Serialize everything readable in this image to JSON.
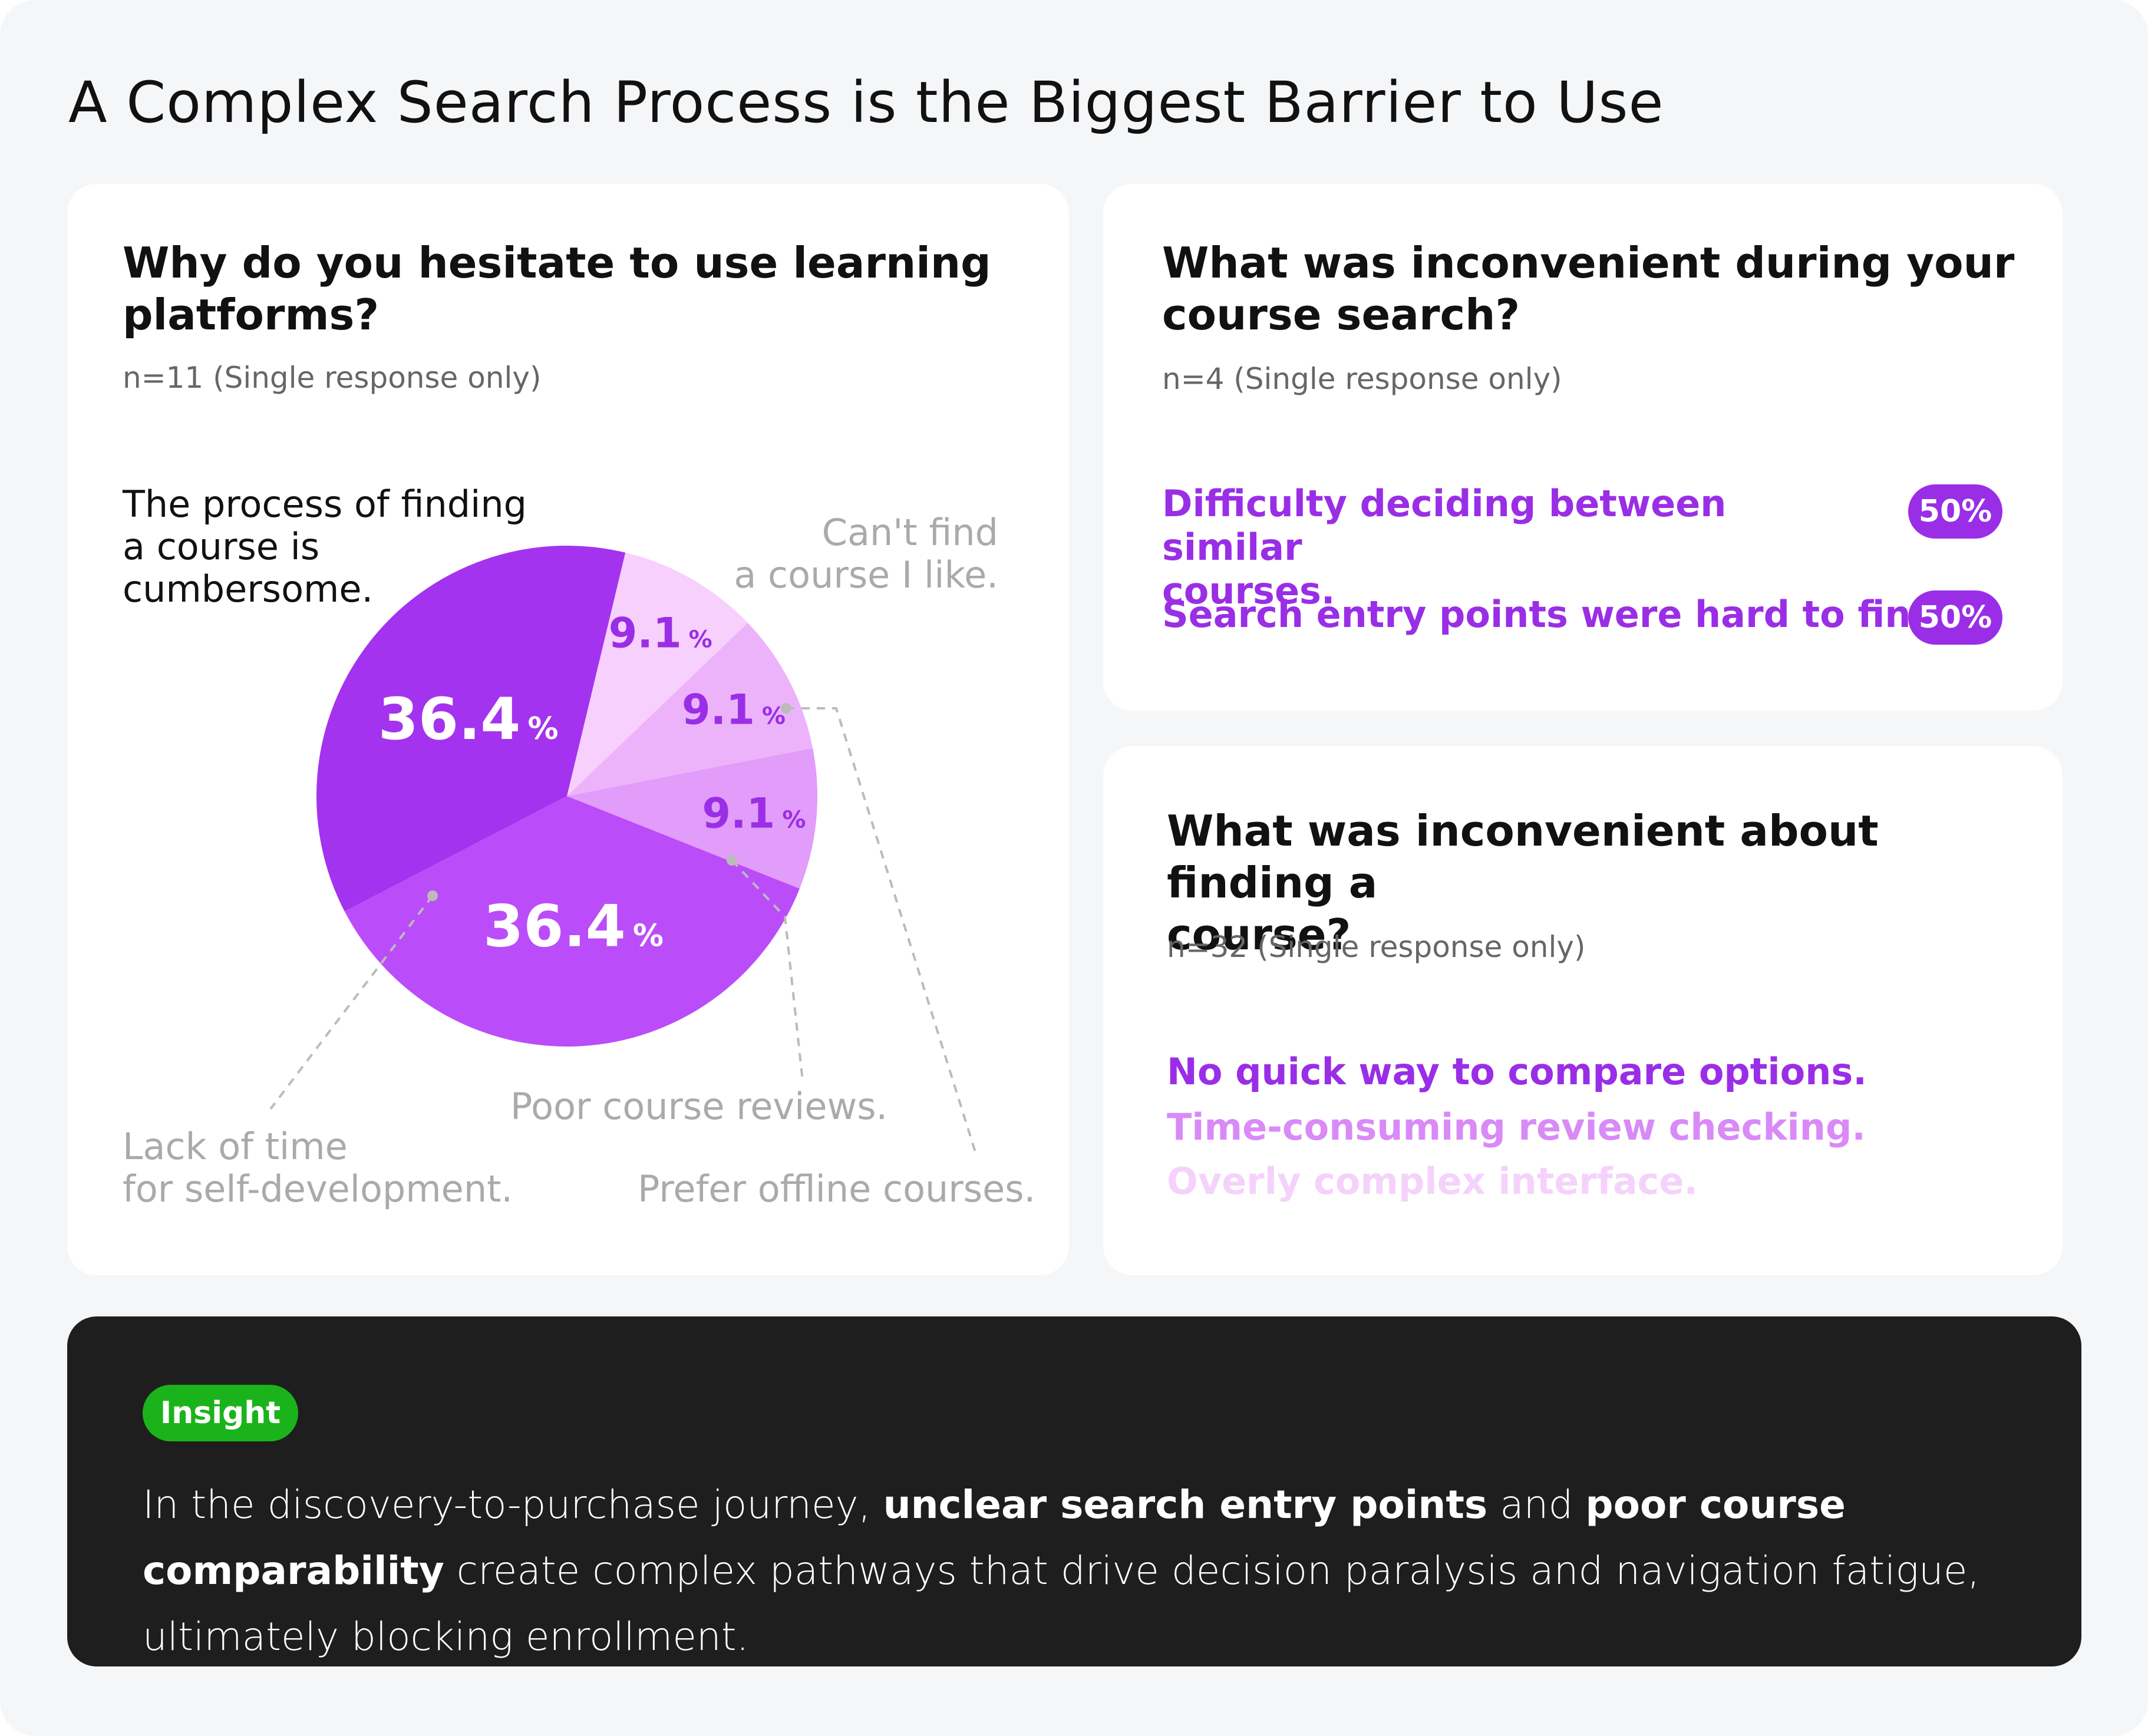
{
  "page": {
    "title": "A Complex Search Process is the Biggest Barrier to Use"
  },
  "cards": {
    "pie": {
      "question": "Why do you hesitate to use learning platforms?",
      "question_lines": [
        "Why do you hesitate to use learning",
        "platforms?"
      ],
      "sample": "n=11 (Single response only)"
    },
    "search": {
      "question_lines": [
        "What was inconvenient during your",
        "course search?"
      ],
      "sample": "n=4 (Single response only)",
      "options": [
        {
          "label_lines": [
            "Difficulty deciding between similar",
            "courses."
          ],
          "percent": "50%"
        },
        {
          "label_lines": [
            "Search entry points were hard to find."
          ],
          "percent": "50%"
        }
      ],
      "accent": "#9a2ee6"
    },
    "finding": {
      "question_lines": [
        "What was inconvenient about finding a",
        "course?"
      ],
      "sample": "n=32 (Single response only)",
      "items": [
        {
          "label": "No quick way to compare options.",
          "color": "#9a2ee6"
        },
        {
          "label": "Time-consuming review checking.",
          "color": "#d98af7"
        },
        {
          "label": "Overly complex interface.",
          "color": "#f5d2fb"
        }
      ]
    }
  },
  "chart_data": {
    "type": "pie",
    "title": "Why do you hesitate to use learning platforms?",
    "slices": [
      {
        "label": "Can't find a course I like.",
        "value": 9.1,
        "display": "9.1",
        "unit": "%",
        "color": "#f7d0fd"
      },
      {
        "label": "Prefer offline courses.",
        "value": 9.1,
        "display": "9.1",
        "unit": "%",
        "color": "#ecb3fb"
      },
      {
        "label": "Poor course reviews.",
        "value": 9.1,
        "display": "9.1",
        "unit": "%",
        "color": "#e29cf9"
      },
      {
        "label": "Lack of time for self-development.",
        "value": 36.4,
        "display": "36.4",
        "unit": "%",
        "color": "#bb4cf9"
      },
      {
        "label": "The process of finding a course is cumbersome.",
        "value": 36.4,
        "display": "36.4",
        "unit": "%",
        "color": "#a333ee"
      }
    ],
    "label_lines": {
      "cumbersome": [
        "The process of finding",
        "a course is",
        "cumbersome."
      ],
      "cant_find": [
        "Can't find",
        "a course I like."
      ],
      "poor_reviews": [
        "Poor course reviews."
      ],
      "lack_time": [
        "Lack of time",
        "for self-development."
      ],
      "offline": [
        "Prefer offline courses."
      ]
    }
  },
  "insight": {
    "badge": "Insight",
    "parts": [
      {
        "text": "In the discovery-to-purchase journey, ",
        "bold": false
      },
      {
        "text": "unclear search entry points",
        "bold": true
      },
      {
        "text": " and ",
        "bold": false
      },
      {
        "text": "poor course comparability",
        "bold": true
      },
      {
        "text": " create complex pathways that drive decision paralysis and navigation fatigue, ultimately blocking enrollment.",
        "bold": false
      }
    ]
  }
}
